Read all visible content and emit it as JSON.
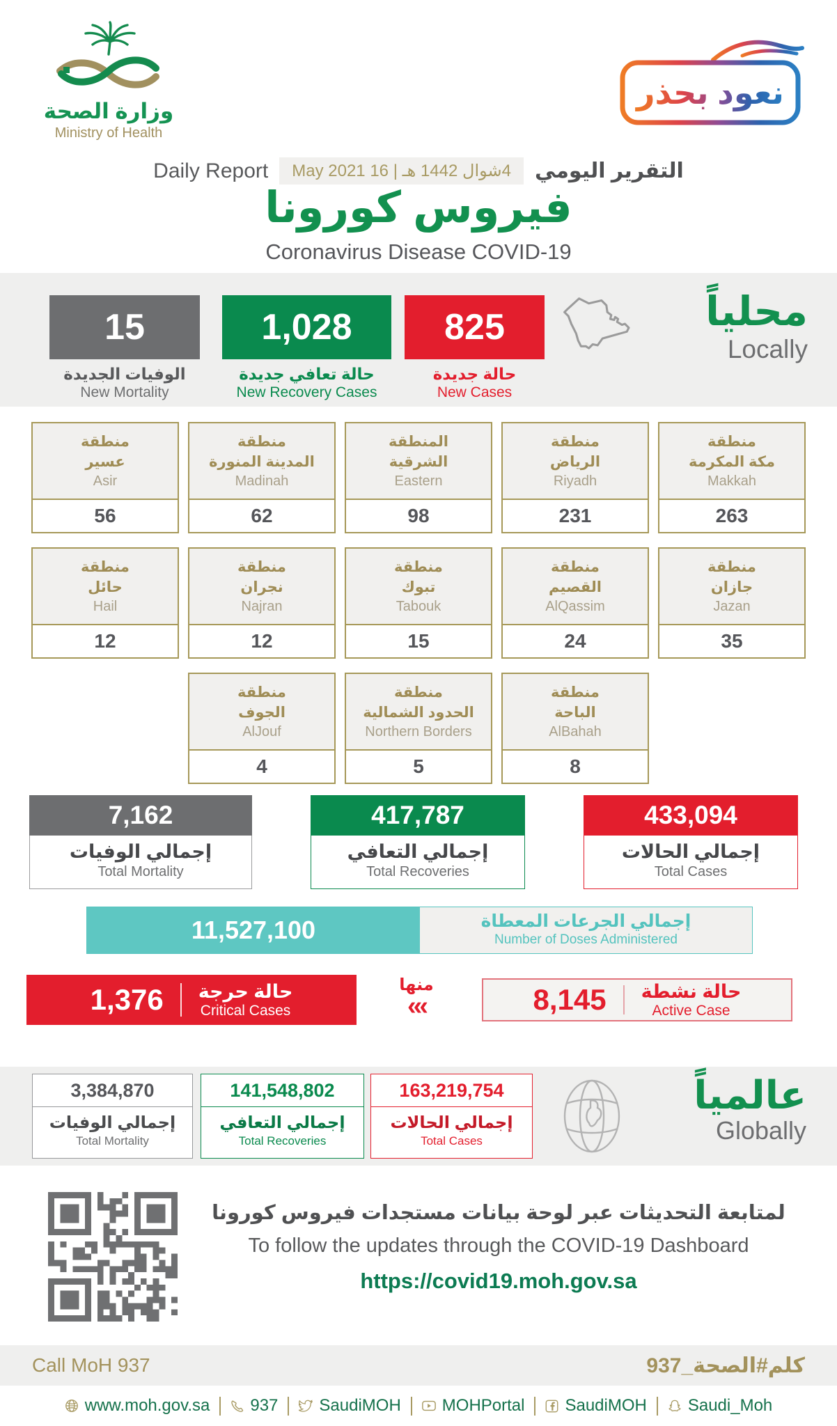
{
  "colors": {
    "green": "#12904f",
    "red": "#e31e2d",
    "gray": "#6d6e70",
    "gold": "#a3925c",
    "teal": "#5ec7c2",
    "band_bg": "#efefee",
    "dark_text": "#55565a"
  },
  "header": {
    "logo_ar": "وزارة الصحة",
    "logo_en": "Ministry of Health",
    "badge_text": "نعود بحذر",
    "daily_report_en": "Daily Report",
    "date_gregorian": "16 May 2021",
    "date_separator": "|",
    "date_hijri": "4شوال 1442 هـ",
    "daily_report_ar": "التقرير اليومي",
    "title_ar": "فيروس كورونا",
    "title_en": "Coronavirus Disease COVID-19"
  },
  "locally": {
    "heading_ar": "محلياً",
    "heading_en": "Locally",
    "stats": [
      {
        "value": "15",
        "label_ar": "الوفيات الجديدة",
        "label_en": "New Mortality"
      },
      {
        "value": "1,028",
        "label_ar": "حالة تعافي جديدة",
        "label_en": "New Recovery Cases"
      },
      {
        "value": "825",
        "label_ar": "حالة جديدة",
        "label_en": "New Cases"
      }
    ]
  },
  "regions": {
    "rows": [
      [
        {
          "ar1": "منطقة",
          "ar2": "عسير",
          "en": "Asir",
          "value": "56"
        },
        {
          "ar1": "منطقة",
          "ar2": "المدينة المنورة",
          "en": "Madinah",
          "value": "62"
        },
        {
          "ar1": "المنطقة",
          "ar2": "الشرقية",
          "en": "Eastern",
          "value": "98"
        },
        {
          "ar1": "منطقة",
          "ar2": "الرياض",
          "en": "Riyadh",
          "value": "231"
        },
        {
          "ar1": "منطقة",
          "ar2": "مكة المكرمة",
          "en": "Makkah",
          "value": "263"
        }
      ],
      [
        {
          "ar1": "منطقة",
          "ar2": "حائل",
          "en": "Hail",
          "value": "12"
        },
        {
          "ar1": "منطقة",
          "ar2": "نجران",
          "en": "Najran",
          "value": "12"
        },
        {
          "ar1": "منطقة",
          "ar2": "تبوك",
          "en": "Tabouk",
          "value": "15"
        },
        {
          "ar1": "منطقة",
          "ar2": "القصيم",
          "en": "AlQassim",
          "value": "24"
        },
        {
          "ar1": "منطقة",
          "ar2": "جازان",
          "en": "Jazan",
          "value": "35"
        }
      ],
      [
        {
          "ar1": "منطقة",
          "ar2": "الجوف",
          "en": "AlJouf",
          "value": "4"
        },
        {
          "ar1": "منطقة",
          "ar2": "الحدود الشمالية",
          "en": "Northern Borders",
          "value": "5"
        },
        {
          "ar1": "منطقة",
          "ar2": "الباحة",
          "en": "AlBahah",
          "value": "8"
        }
      ]
    ]
  },
  "totals": [
    {
      "value": "7,162",
      "label_ar": "إجمالي الوفيات",
      "label_en": "Total Mortality"
    },
    {
      "value": "417,787",
      "label_ar": "إجمالي التعافي",
      "label_en": "Total Recoveries"
    },
    {
      "value": "433,094",
      "label_ar": "إجمالي الحالات",
      "label_en": "Total Cases"
    }
  ],
  "doses": {
    "value": "11,527,100",
    "label_ar": "إجمالي الجرعات المعطاة",
    "label_en": "Number of Doses Administered"
  },
  "cases_status": {
    "critical_value": "1,376",
    "critical_label_ar": "حالة حرجة",
    "critical_label_en": "Critical Cases",
    "of_which_ar": "منها",
    "chevrons": "‹‹‹",
    "active_value": "8,145",
    "active_label_ar": "حالة نشطة",
    "active_label_en": "Active Case"
  },
  "globally": {
    "heading_ar": "عالمياً",
    "heading_en": "Globally",
    "totals": [
      {
        "value": "3,384,870",
        "label_ar": "إجمالي الوفيات",
        "label_en": "Total Mortality"
      },
      {
        "value": "141,548,802",
        "label_ar": "إجمالي التعافي",
        "label_en": "Total Recoveries"
      },
      {
        "value": "163,219,754",
        "label_ar": "إجمالي الحالات",
        "label_en": "Total Cases"
      }
    ]
  },
  "dashboard": {
    "note_ar": "لمتابعة التحديثات عبر لوحة بيانات مستجدات فيروس كورونا",
    "note_en": "To follow the updates through the COVID-19 Dashboard",
    "url": "https://covid19.moh.gov.sa"
  },
  "footer": {
    "call_en": "Call MoH 937",
    "hashtag_ar": "كلم#الصحة_937",
    "social": [
      {
        "icon": "globe-icon",
        "label": "www.moh.gov.sa"
      },
      {
        "icon": "phone-icon",
        "label": "937"
      },
      {
        "icon": "twitter-icon",
        "label": "SaudiMOH"
      },
      {
        "icon": "youtube-icon",
        "label": "MOHPortal"
      },
      {
        "icon": "facebook-icon",
        "label": "SaudiMOH"
      },
      {
        "icon": "snapchat-icon",
        "label": "Saudi_Moh"
      }
    ]
  }
}
